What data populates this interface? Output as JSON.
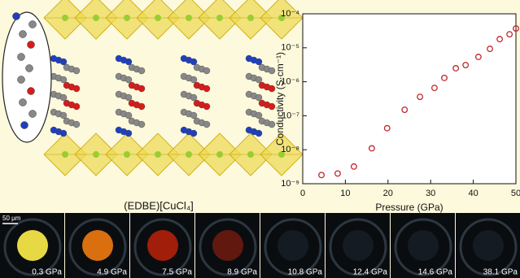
{
  "chart_data": {
    "type": "scatter",
    "xlabel": "Pressure (GPa)",
    "ylabel": "Conductivity (S·cm⁻¹)",
    "xlim": [
      0,
      50
    ],
    "xticks": [
      0,
      10,
      20,
      30,
      40,
      50
    ],
    "ylim": [
      1e-09,
      0.0001
    ],
    "log_y": true,
    "yticks": [
      {
        "value": 1e-09,
        "label": "10⁻⁹"
      },
      {
        "value": 1e-08,
        "label": "10⁻⁸"
      },
      {
        "value": 1e-07,
        "label": "10⁻⁷"
      },
      {
        "value": 1e-06,
        "label": "10⁻⁶"
      },
      {
        "value": 1e-05,
        "label": "10⁻⁵"
      },
      {
        "value": 0.0001,
        "label": "10⁻⁴"
      }
    ],
    "color": "#c0282d",
    "x": [
      4.4,
      8.2,
      12.0,
      16.2,
      19.8,
      23.9,
      27.5,
      30.9,
      33.2,
      35.9,
      38.2,
      41.2,
      43.9,
      46.2,
      48.5,
      50.0
    ],
    "values": [
      1.8e-09,
      2e-09,
      3.2e-09,
      1.1e-08,
      4.3e-08,
      1.5e-07,
      3.6e-07,
      6.6e-07,
      1.3e-06,
      2.5e-06,
      3.1e-06,
      5.4e-06,
      9.3e-06,
      1.8e-05,
      2.5e-05,
      3.7e-05
    ]
  },
  "structure": {
    "caption": "(EDBE)[CuCl₄]"
  },
  "micrographs": {
    "scale_bar": "50 μm",
    "labels": [
      "0.3 GPa",
      "4.9 GPa",
      "7.5 GPa",
      "8.9 GPa",
      "10.8 GPa",
      "12.4 GPa",
      "14.6 GPa",
      "38.1 GPa"
    ]
  }
}
